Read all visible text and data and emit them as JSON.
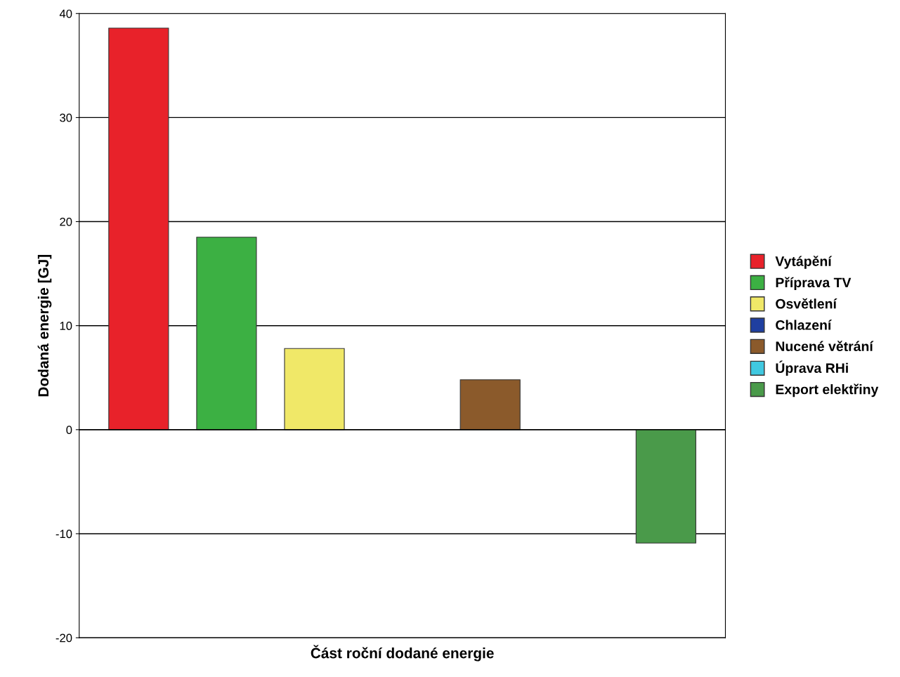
{
  "chart_data": {
    "type": "bar",
    "xlabel": "Část roční dodané energie",
    "ylabel": "Dodaná energie [GJ]",
    "categories": [
      null
    ],
    "series": [
      {
        "name": "Vytápění",
        "color": "#e8222a",
        "values": [
          38.6
        ]
      },
      {
        "name": "Příprava TV",
        "color": "#3cb043",
        "values": [
          18.5
        ]
      },
      {
        "name": "Osvětlení",
        "color": "#f0e868",
        "values": [
          7.8
        ]
      },
      {
        "name": "Chlazení",
        "color": "#1f3fa0",
        "values": [
          null
        ]
      },
      {
        "name": "Nucené větrání",
        "color": "#8b5a2b",
        "values": [
          4.8
        ]
      },
      {
        "name": "Úprava RHi",
        "color": "#40c8e0",
        "values": [
          null
        ]
      },
      {
        "name": "Export elektřiny",
        "color": "#4a9a4a",
        "values": [
          -10.9
        ]
      }
    ],
    "ylim": [
      -20,
      40
    ],
    "yticks": [
      -20,
      -10,
      0,
      10,
      20,
      30,
      40
    ],
    "grid": "y",
    "legend": "right"
  }
}
